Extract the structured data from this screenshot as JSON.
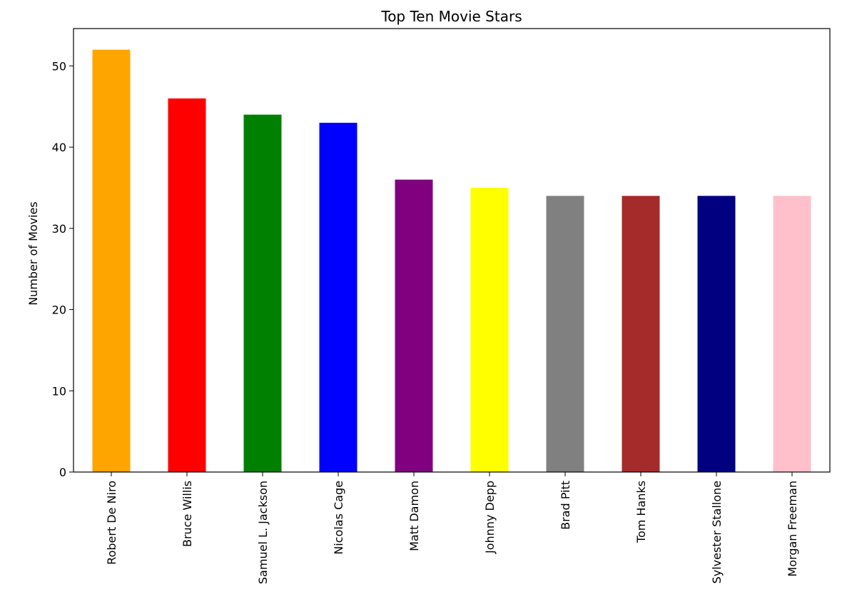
{
  "chart_data": {
    "type": "bar",
    "title": "Top Ten Movie Stars",
    "xlabel": "",
    "ylabel": "Number of Movies",
    "categories": [
      "Robert De Niro",
      "Bruce Willis",
      "Samuel L. Jackson",
      "Nicolas Cage",
      "Matt Damon",
      "Johnny Depp",
      "Brad Pitt",
      "Tom Hanks",
      "Sylvester Stallone",
      "Morgan Freeman"
    ],
    "values": [
      52,
      46,
      44,
      43,
      36,
      35,
      34,
      34,
      34,
      34
    ],
    "colors": [
      "#ffa500",
      "#ff0000",
      "#008000",
      "#0000ff",
      "#800080",
      "#ffff00",
      "#808080",
      "#a52a2a",
      "#000080",
      "#ffc0cb"
    ],
    "ylim": [
      0,
      54.6
    ],
    "yticks": [
      0,
      10,
      20,
      30,
      40,
      50
    ],
    "grid": false,
    "legend": "none"
  }
}
